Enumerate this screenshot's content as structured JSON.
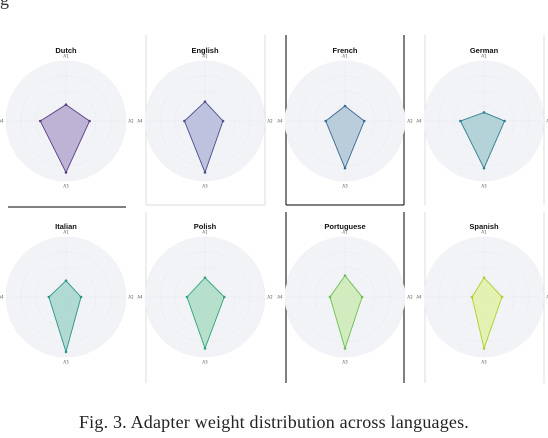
{
  "caption": "Fig. 3.   Adapter weight distribution across languages.",
  "top_fragment": "g",
  "chart_data": [
    {
      "type": "radar",
      "title": "Dutch",
      "axes": [
        "A1",
        "A2",
        "A3",
        "A4"
      ],
      "values": [
        0.38,
        0.55,
        1.2,
        0.6
      ],
      "rmax": 1.4,
      "color": "#5b3e84",
      "fill": "#b4a7cf"
    },
    {
      "type": "radar",
      "title": "English",
      "axes": [
        "A1",
        "A2",
        "A3",
        "A4"
      ],
      "values": [
        0.45,
        0.42,
        1.2,
        0.48
      ],
      "rmax": 1.4,
      "color": "#4a4f8e",
      "fill": "#b6b9d9"
    },
    {
      "type": "radar",
      "title": "French",
      "axes": [
        "A1",
        "A2",
        "A3",
        "A4"
      ],
      "values": [
        0.35,
        0.45,
        1.1,
        0.45
      ],
      "rmax": 1.4,
      "color": "#3a6a93",
      "fill": "#b0c6d6"
    },
    {
      "type": "radar",
      "title": "German",
      "axes": [
        "A1",
        "A2",
        "A3",
        "A4"
      ],
      "values": [
        0.2,
        0.48,
        1.1,
        0.55
      ],
      "rmax": 1.4,
      "color": "#2e7d8e",
      "fill": "#a9cdd2"
    },
    {
      "type": "radar",
      "title": "Italian",
      "axes": [
        "A1",
        "A2",
        "A3",
        "A4"
      ],
      "values": [
        0.38,
        0.35,
        1.28,
        0.4
      ],
      "rmax": 1.4,
      "color": "#2a9487",
      "fill": "#a6d5cc"
    },
    {
      "type": "radar",
      "title": "Polish",
      "axes": [
        "A1",
        "A2",
        "A3",
        "A4"
      ],
      "values": [
        0.45,
        0.45,
        1.2,
        0.42
      ],
      "rmax": 1.4,
      "color": "#2fa47a",
      "fill": "#acdcc4"
    },
    {
      "type": "radar",
      "title": "Portuguese",
      "axes": [
        "A1",
        "A2",
        "A3",
        "A4"
      ],
      "values": [
        0.5,
        0.4,
        1.2,
        0.35
      ],
      "rmax": 1.4,
      "color": "#6cc052",
      "fill": "#cdeab6"
    },
    {
      "type": "radar",
      "title": "Spanish",
      "axes": [
        "A1",
        "A2",
        "A3",
        "A4"
      ],
      "values": [
        0.45,
        0.42,
        1.2,
        0.28
      ],
      "rmax": 1.4,
      "color": "#a8d228",
      "fill": "#e1f0a7"
    }
  ]
}
